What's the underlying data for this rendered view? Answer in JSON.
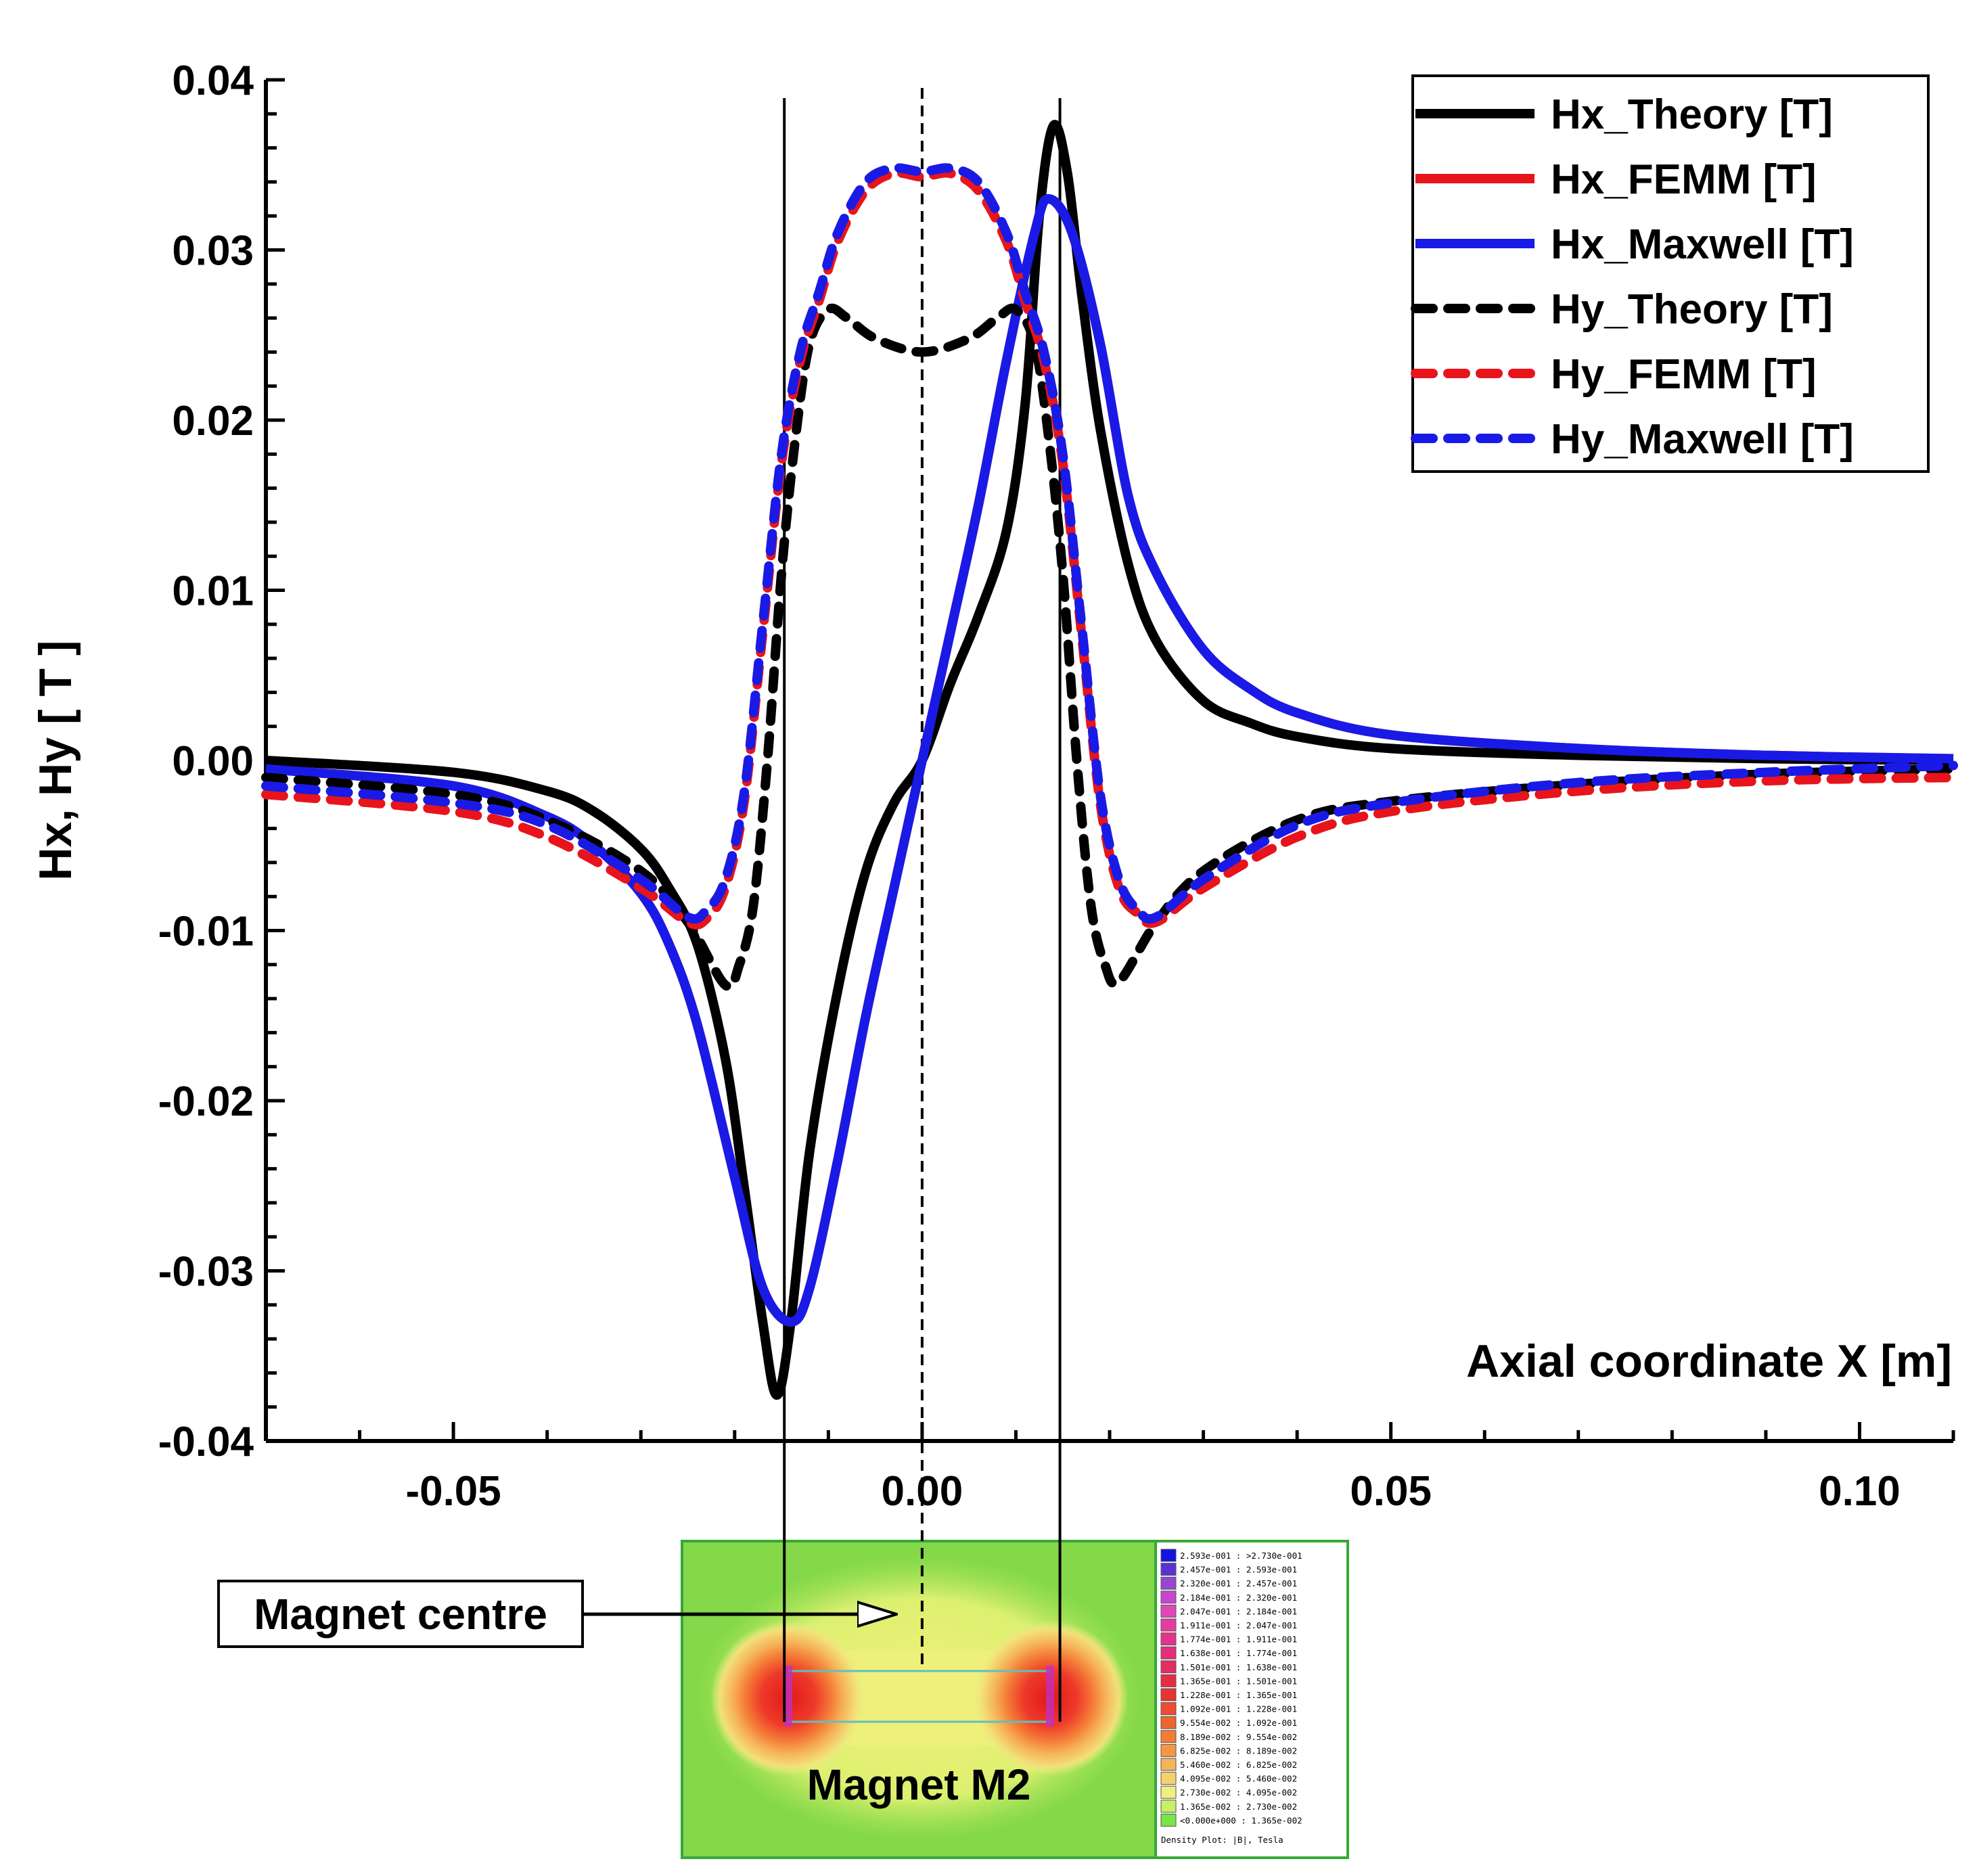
{
  "chart_data": {
    "type": "line",
    "title": "",
    "xlabel": "Axial coordinate X [m]",
    "ylabel": "Hx, Hy [ T ]",
    "xlim": [
      -0.07,
      0.11
    ],
    "ylim": [
      -0.04,
      0.04
    ],
    "xticks": [
      -0.05,
      0.0,
      0.05,
      0.1
    ],
    "xtick_labels": [
      "-0.05",
      "0.00",
      "0.05",
      "0.10"
    ],
    "yticks": [
      -0.04,
      -0.03,
      -0.02,
      -0.01,
      0.0,
      0.01,
      0.02,
      0.03,
      0.04
    ],
    "ytick_labels": [
      "-0.04",
      "-0.03",
      "-0.02",
      "-0.01",
      "0.00",
      "0.01",
      "0.02",
      "0.03",
      "0.04"
    ],
    "grid": false,
    "legend_position": "top-right",
    "series": [
      {
        "name": "Hx_Theory [T]",
        "color": "#000000",
        "dash": "solid",
        "x": [
          -0.07,
          -0.05,
          -0.04,
          -0.035,
          -0.03,
          -0.027,
          -0.024,
          -0.021,
          -0.019,
          -0.017,
          -0.0155,
          -0.014,
          -0.012,
          -0.009,
          -0.006,
          -0.003,
          0.0,
          0.003,
          0.006,
          0.009,
          0.011,
          0.0125,
          0.014,
          0.0155,
          0.017,
          0.019,
          0.022,
          0.025,
          0.03,
          0.035,
          0.04,
          0.05,
          0.07,
          0.09,
          0.11
        ],
        "y": [
          0.0,
          -0.0007,
          -0.0018,
          -0.003,
          -0.0052,
          -0.0075,
          -0.0108,
          -0.0175,
          -0.025,
          -0.033,
          -0.0373,
          -0.033,
          -0.023,
          -0.0135,
          -0.0065,
          -0.0025,
          0.0,
          0.0045,
          0.0085,
          0.0135,
          0.021,
          0.032,
          0.0373,
          0.0345,
          0.0275,
          0.0195,
          0.0115,
          0.007,
          0.0035,
          0.0022,
          0.0014,
          0.0007,
          0.0003,
          0.0001,
          0.0
        ]
      },
      {
        "name": "Hx_FEMM [T]",
        "color": "#e8141b",
        "dash": "solid",
        "x": [
          -0.07,
          -0.05,
          -0.04,
          -0.035,
          -0.03,
          -0.027,
          -0.024,
          -0.02,
          -0.017,
          -0.014,
          -0.012,
          -0.009,
          -0.006,
          -0.003,
          0.0,
          0.003,
          0.006,
          0.009,
          0.012,
          0.0135,
          0.016,
          0.019,
          0.022,
          0.025,
          0.03,
          0.035,
          0.04,
          0.05,
          0.07,
          0.09,
          0.11
        ],
        "y": [
          -0.0005,
          -0.0015,
          -0.0033,
          -0.005,
          -0.0078,
          -0.0108,
          -0.0155,
          -0.0245,
          -0.031,
          -0.033,
          -0.031,
          -0.0235,
          -0.015,
          -0.0075,
          0.0,
          0.0075,
          0.015,
          0.0235,
          0.031,
          0.033,
          0.031,
          0.0245,
          0.0155,
          0.011,
          0.0065,
          0.0042,
          0.0028,
          0.0015,
          0.0007,
          0.0003,
          0.0001
        ]
      },
      {
        "name": "Hx_Maxwell [T]",
        "color": "#1a1ae6",
        "dash": "solid",
        "x": [
          -0.07,
          -0.05,
          -0.04,
          -0.035,
          -0.03,
          -0.027,
          -0.024,
          -0.02,
          -0.017,
          -0.014,
          -0.012,
          -0.009,
          -0.006,
          -0.003,
          0.0,
          0.003,
          0.006,
          0.009,
          0.012,
          0.0135,
          0.016,
          0.019,
          0.022,
          0.025,
          0.03,
          0.035,
          0.04,
          0.05,
          0.07,
          0.09,
          0.11
        ],
        "y": [
          -0.0005,
          -0.0015,
          -0.0033,
          -0.005,
          -0.0078,
          -0.0108,
          -0.0155,
          -0.0245,
          -0.031,
          -0.033,
          -0.031,
          -0.0235,
          -0.015,
          -0.0075,
          0.0,
          0.0075,
          0.015,
          0.0235,
          0.031,
          0.033,
          0.031,
          0.0245,
          0.0155,
          0.011,
          0.0065,
          0.0042,
          0.0028,
          0.0015,
          0.0007,
          0.0003,
          0.0001
        ]
      },
      {
        "name": "Hy_Theory [T]",
        "color": "#000000",
        "dash": "dash",
        "x": [
          -0.07,
          -0.05,
          -0.04,
          -0.03,
          -0.025,
          -0.021,
          -0.0195,
          -0.018,
          -0.0165,
          -0.015,
          -0.0135,
          -0.012,
          -0.01,
          -0.008,
          -0.005,
          0.0,
          0.005,
          0.008,
          0.01,
          0.012,
          0.0135,
          0.015,
          0.0165,
          0.018,
          0.0195,
          0.021,
          0.025,
          0.03,
          0.04,
          0.05,
          0.07,
          0.09,
          0.11
        ],
        "y": [
          -0.001,
          -0.002,
          -0.0035,
          -0.0065,
          -0.0095,
          -0.0132,
          -0.012,
          -0.0085,
          0.0,
          0.011,
          0.019,
          0.0245,
          0.0265,
          0.026,
          0.0248,
          0.024,
          0.0248,
          0.026,
          0.0265,
          0.0245,
          0.019,
          0.011,
          0.0,
          -0.0085,
          -0.012,
          -0.013,
          -0.0095,
          -0.0065,
          -0.0035,
          -0.0024,
          -0.0014,
          -0.0008,
          -0.0005
        ]
      },
      {
        "name": "Hy_FEMM [T]",
        "color": "#e8141b",
        "dash": "dash",
        "x": [
          -0.07,
          -0.05,
          -0.04,
          -0.03,
          -0.025,
          -0.023,
          -0.021,
          -0.019,
          -0.017,
          -0.015,
          -0.013,
          -0.011,
          -0.009,
          -0.006,
          -0.003,
          0.0,
          0.003,
          0.006,
          0.009,
          0.011,
          0.013,
          0.015,
          0.017,
          0.019,
          0.021,
          0.023,
          0.025,
          0.03,
          0.04,
          0.05,
          0.07,
          0.09,
          0.11
        ],
        "y": [
          -0.002,
          -0.003,
          -0.0045,
          -0.0075,
          -0.0095,
          -0.0093,
          -0.0075,
          -0.0025,
          0.0075,
          0.0175,
          0.0235,
          0.027,
          0.0305,
          0.0335,
          0.0345,
          0.0343,
          0.0345,
          0.0335,
          0.0305,
          0.027,
          0.0235,
          0.0175,
          0.0075,
          -0.0025,
          -0.0075,
          -0.009,
          -0.0095,
          -0.0075,
          -0.0045,
          -0.003,
          -0.0018,
          -0.0012,
          -0.001
        ]
      },
      {
        "name": "Hy_Maxwell [T]",
        "color": "#1a1ae6",
        "dash": "dash",
        "x": [
          -0.07,
          -0.05,
          -0.04,
          -0.03,
          -0.025,
          -0.023,
          -0.021,
          -0.019,
          -0.017,
          -0.015,
          -0.013,
          -0.011,
          -0.009,
          -0.006,
          -0.003,
          0.0,
          0.003,
          0.006,
          0.009,
          0.011,
          0.013,
          0.015,
          0.017,
          0.019,
          0.021,
          0.023,
          0.025,
          0.03,
          0.04,
          0.05,
          0.07,
          0.09,
          0.11
        ],
        "y": [
          -0.0015,
          -0.0025,
          -0.0038,
          -0.007,
          -0.0092,
          -0.0088,
          -0.007,
          -0.002,
          0.008,
          0.018,
          0.024,
          0.0275,
          0.031,
          0.034,
          0.0348,
          0.0346,
          0.0348,
          0.034,
          0.031,
          0.0275,
          0.024,
          0.018,
          0.008,
          -0.002,
          -0.007,
          -0.0088,
          -0.0092,
          -0.007,
          -0.0038,
          -0.0025,
          -0.0013,
          -0.0007,
          -0.0003
        ]
      }
    ],
    "vertical_lines": [
      {
        "x": -0.0147,
        "style": "solid"
      },
      {
        "x": 0.0,
        "style": "dash"
      },
      {
        "x": 0.0147,
        "style": "solid"
      }
    ],
    "annotations": {
      "magnet_centre": "Magnet centre",
      "magnet_label": "Magnet M2",
      "colorbar_caption": "Density Plot: |B|, Tesla",
      "colorbar_ranges": [
        "2.593e-001 : >2.730e-001",
        "2.457e-001 : 2.593e-001",
        "2.320e-001 : 2.457e-001",
        "2.184e-001 : 2.320e-001",
        "2.047e-001 : 2.184e-001",
        "1.911e-001 : 2.047e-001",
        "1.774e-001 : 1.911e-001",
        "1.638e-001 : 1.774e-001",
        "1.501e-001 : 1.638e-001",
        "1.365e-001 : 1.501e-001",
        "1.228e-001 : 1.365e-001",
        "1.092e-001 : 1.228e-001",
        "9.554e-002 : 1.092e-001",
        "8.189e-002 : 9.554e-002",
        "6.825e-002 : 8.189e-002",
        "5.460e-002 : 6.825e-002",
        "4.095e-002 : 5.460e-002",
        "2.730e-002 : 4.095e-002",
        "1.365e-002 : 2.730e-002",
        "<0.000e+000 : 1.365e-002"
      ],
      "colorbar_colors": [
        "#1414e0",
        "#5a32d8",
        "#9646d2",
        "#c846cd",
        "#e146b9",
        "#e63ca0",
        "#e6328c",
        "#e62d78",
        "#e62d5f",
        "#e62d46",
        "#eb3232",
        "#f04b32",
        "#f0642d",
        "#f57d32",
        "#f59646",
        "#f5b45a",
        "#f5d26e",
        "#f0f082",
        "#c8f064",
        "#78e646"
      ]
    }
  }
}
